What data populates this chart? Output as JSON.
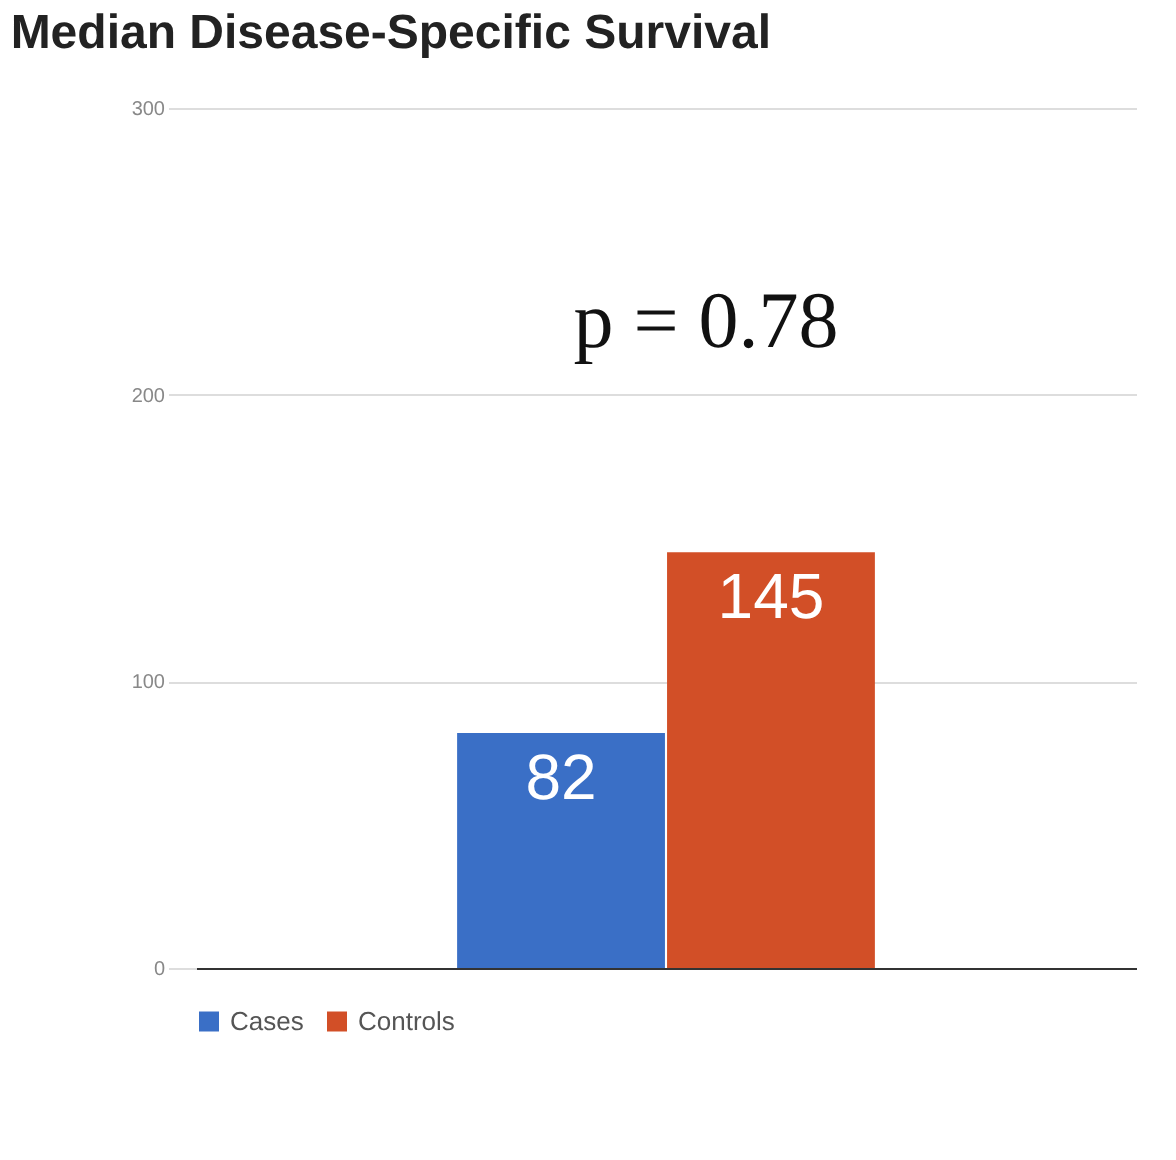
{
  "chart_data": {
    "type": "bar",
    "title": "Median Disease-Specific Survival",
    "categories": [
      null
    ],
    "series": [
      {
        "name": "Cases",
        "color": "#3a6fc6",
        "values": [
          82
        ]
      },
      {
        "name": "Controls",
        "color": "#d24f27",
        "values": [
          145
        ]
      }
    ],
    "ylim": [
      0,
      300
    ],
    "yticks": [
      0,
      100,
      200,
      300
    ],
    "grid": "y",
    "legend": "bottom",
    "data_labels": true,
    "annotations": [
      "p = 0.78"
    ]
  }
}
